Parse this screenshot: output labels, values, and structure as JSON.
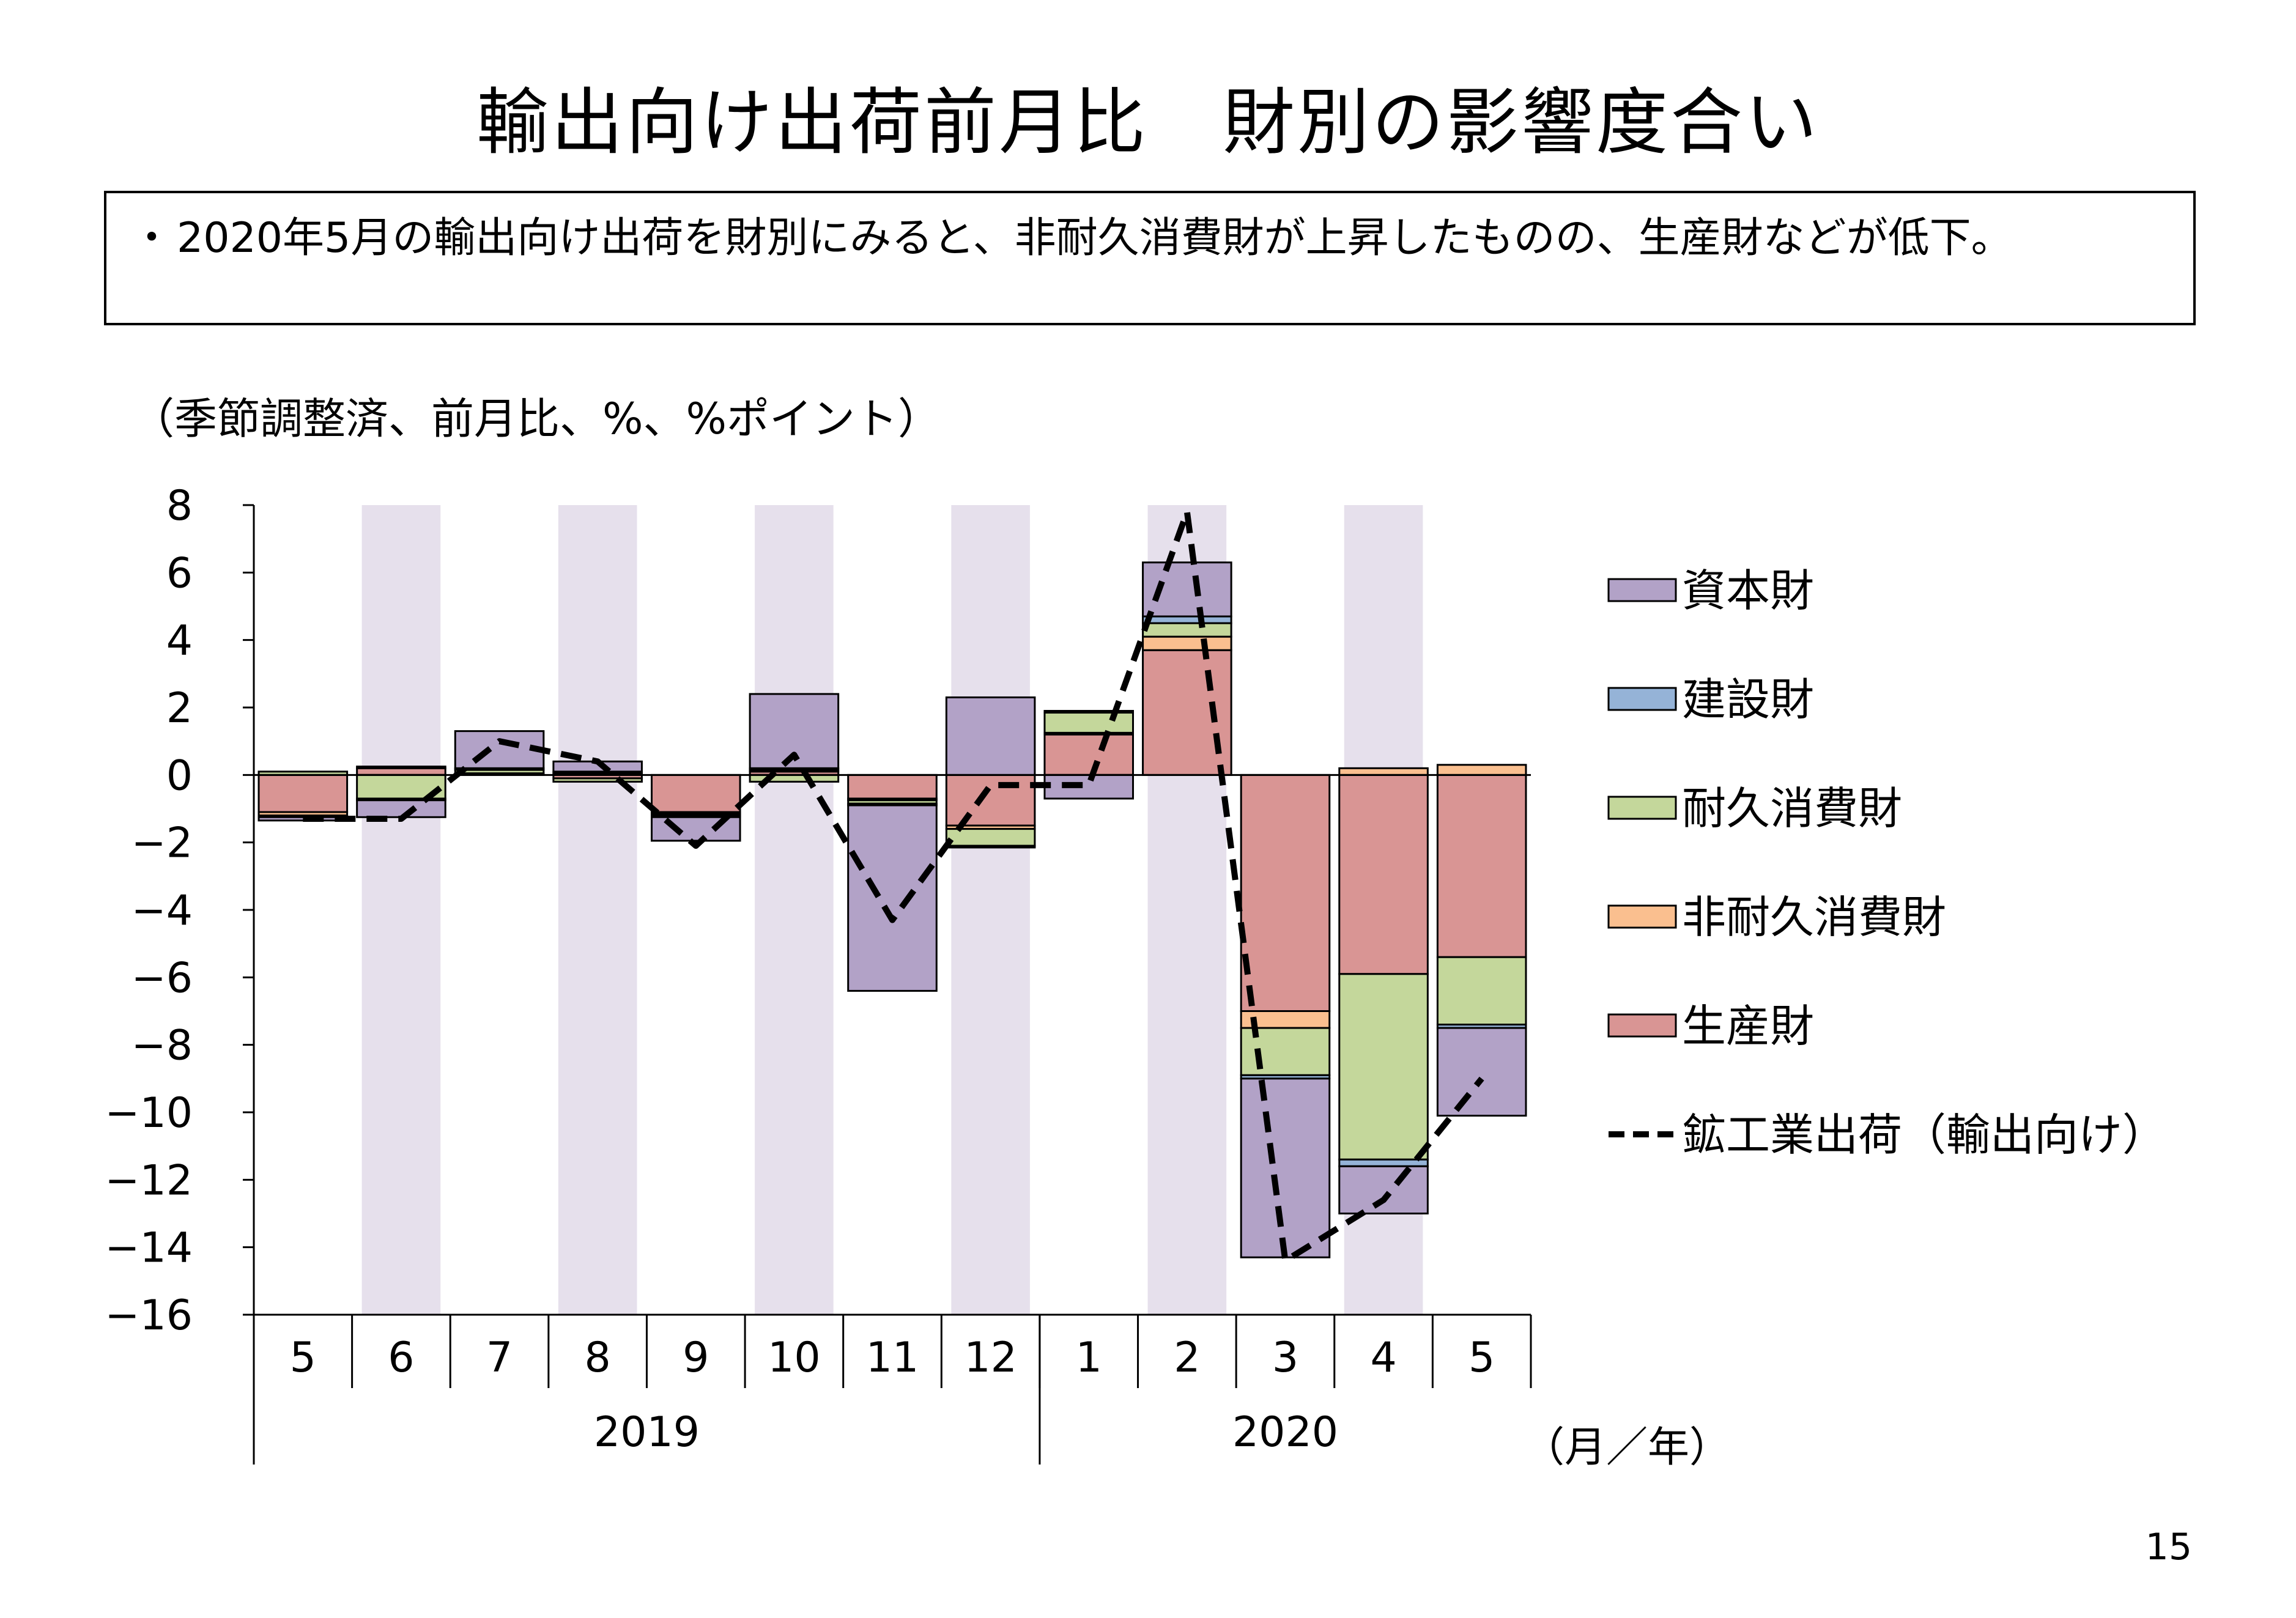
{
  "title": "輸出向け出荷前月比　財別の影響度合い",
  "note": {
    "bullet": "・",
    "text": "2020年5月の輸出向け出荷を財別にみると、非耐久消費財が上昇したものの、生産財などが低下。"
  },
  "unit_label": "（季節調整済、前月比、%、%ポイント）",
  "page_number": "15",
  "chart_data": {
    "type": "bar",
    "stacked": true,
    "categories": [
      "5",
      "6",
      "7",
      "8",
      "9",
      "10",
      "11",
      "12",
      "1",
      "2",
      "3",
      "4",
      "5"
    ],
    "year_labels": [
      {
        "label": "2019",
        "from": 0,
        "to": 7
      },
      {
        "label": "2020",
        "from": 8,
        "to": 12
      }
    ],
    "x_unit_label": "（月／年）",
    "ylim": [
      -16,
      8
    ],
    "yticks": [
      8,
      6,
      4,
      2,
      0,
      -2,
      -4,
      -6,
      -8,
      -10,
      -12,
      -14,
      -16
    ],
    "ytick_labels": [
      "8",
      "6",
      "4",
      "2",
      "0",
      "−2",
      "−4",
      "−6",
      "−8",
      "−10",
      "−12",
      "−14",
      "−16"
    ],
    "shaded_categories": [
      1,
      3,
      5,
      7,
      9,
      11
    ],
    "shade_color": "#e6e0ec",
    "series": [
      {
        "name": "生産財",
        "color": "#d99594",
        "values": [
          -1.1,
          0.2,
          0.05,
          -0.1,
          -1.1,
          0.1,
          -0.7,
          -1.5,
          1.2,
          3.7,
          -7.0,
          -5.9,
          -5.4
        ]
      },
      {
        "name": "非耐久消費財",
        "color": "#fabf8f",
        "values": [
          -0.1,
          0.05,
          0.0,
          0.05,
          -0.05,
          0.05,
          -0.05,
          -0.1,
          0.05,
          0.4,
          -0.5,
          0.2,
          0.3
        ]
      },
      {
        "name": "耐久消費財",
        "color": "#c4d79b",
        "values": [
          0.1,
          -0.7,
          0.1,
          -0.1,
          -0.05,
          -0.2,
          -0.1,
          -0.5,
          0.6,
          0.4,
          -1.4,
          -5.5,
          -2.0
        ]
      },
      {
        "name": "建設財",
        "color": "#95b3d7",
        "values": [
          -0.05,
          -0.05,
          0.05,
          0.05,
          -0.05,
          0.05,
          -0.05,
          -0.05,
          0.05,
          0.2,
          -0.1,
          -0.2,
          -0.1
        ]
      },
      {
        "name": "資本財",
        "color": "#b2a2c7",
        "values": [
          -0.1,
          -0.5,
          1.1,
          0.3,
          -0.7,
          2.2,
          -5.5,
          2.3,
          -0.7,
          1.6,
          -5.3,
          -1.4,
          -2.6
        ]
      }
    ],
    "line": {
      "name": "鉱工業出荷（輸出向け）",
      "color": "#000000",
      "dashed": true,
      "values": [
        -1.3,
        -1.3,
        1.0,
        0.4,
        -2.1,
        0.6,
        -4.3,
        -0.3,
        -0.3,
        7.8,
        -14.4,
        -12.6,
        -9.0
      ]
    },
    "legend": [
      "資本財",
      "建設財",
      "耐久消費財",
      "非耐久消費財",
      "生産財",
      "鉱工業出荷（輸出向け）"
    ],
    "legend_position": "right"
  }
}
